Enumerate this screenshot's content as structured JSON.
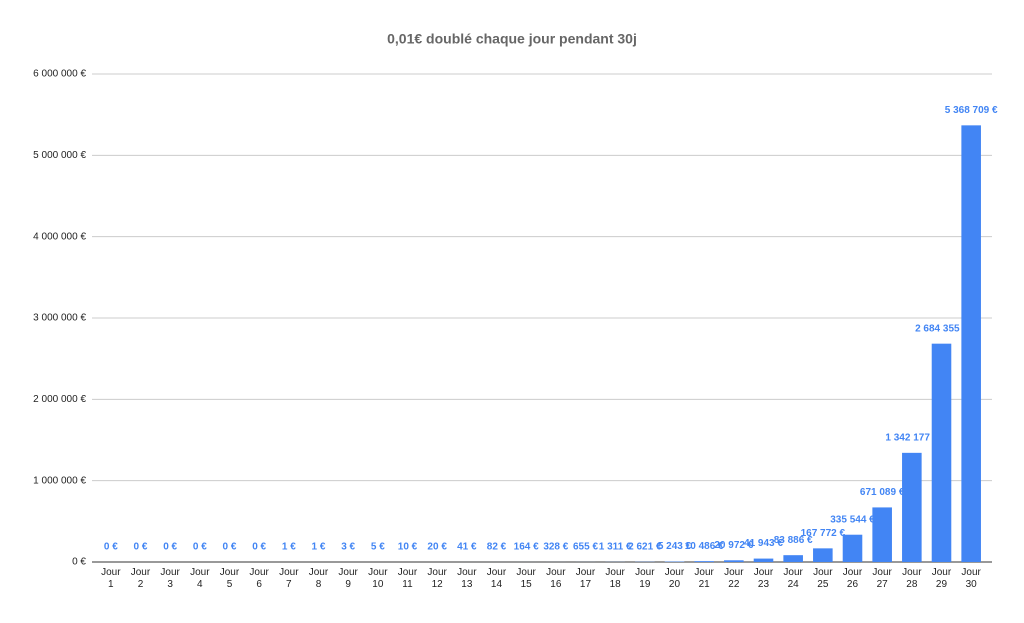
{
  "chart_data": {
    "type": "bar",
    "title": "0,01€ doublé chaque jour pendant 30j",
    "categories": [
      "Jour 1",
      "Jour 2",
      "Jour 3",
      "Jour 4",
      "Jour 5",
      "Jour 6",
      "Jour 7",
      "Jour 8",
      "Jour 9",
      "Jour 10",
      "Jour 11",
      "Jour 12",
      "Jour 13",
      "Jour 14",
      "Jour 15",
      "Jour 16",
      "Jour 17",
      "Jour 18",
      "Jour 19",
      "Jour 20",
      "Jour 21",
      "Jour 22",
      "Jour 23",
      "Jour 24",
      "Jour 25",
      "Jour 26",
      "Jour 27",
      "Jour 28",
      "Jour 29",
      "Jour 30"
    ],
    "values": [
      0.01,
      0.02,
      0.04,
      0.08,
      0.16,
      0.32,
      0.64,
      1.28,
      2.56,
      5.12,
      10.24,
      20.48,
      40.96,
      81.92,
      163.84,
      327.68,
      655.36,
      1310.72,
      2621.44,
      5242.88,
      10485.76,
      20971.52,
      41943.04,
      83886.08,
      167772.16,
      335544.32,
      671088.64,
      1342177.28,
      2684354.56,
      5368709.12
    ],
    "value_labels": [
      "0 €",
      "0 €",
      "0 €",
      "0 €",
      "0 €",
      "0 €",
      "1 €",
      "1 €",
      "3 €",
      "5 €",
      "10 €",
      "20 €",
      "41 €",
      "82 €",
      "164 €",
      "328 €",
      "655 €",
      "1 311 €",
      "2 621 €",
      "5 243 €",
      "10 486 €",
      "20 972 €",
      "41 943 €",
      "83 886 €",
      "167 772 €",
      "335 544 €",
      "671 089 €",
      "1 342 177 €",
      "2 684 355 €",
      "5 368 709 €"
    ],
    "color": "#4285f4",
    "ylim": [
      0,
      6000000
    ],
    "yticks": [
      {
        "value": 0,
        "label": "0 €"
      },
      {
        "value": 1000000,
        "label": "1 000 000 €"
      },
      {
        "value": 2000000,
        "label": "2 000 000 €"
      },
      {
        "value": 3000000,
        "label": "3 000 000 €"
      },
      {
        "value": 4000000,
        "label": "4 000 000 €"
      },
      {
        "value": 5000000,
        "label": "5 000 000 €"
      },
      {
        "value": 6000000,
        "label": "6 000 000 €"
      }
    ],
    "grid": true
  }
}
